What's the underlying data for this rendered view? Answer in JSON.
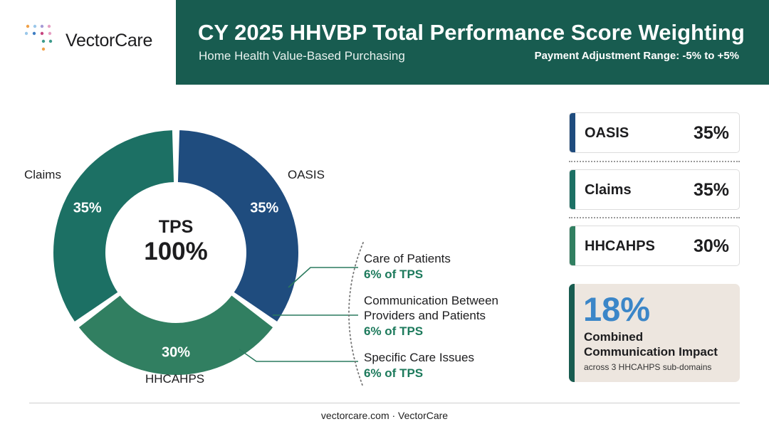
{
  "brand": {
    "name": "VectorCare"
  },
  "header": {
    "title": "CY 2025 HHVBP Total Performance Score Weighting",
    "subtitle": "Home Health Value-Based Purchasing",
    "range": "Payment Adjustment Range: -5% to +5%"
  },
  "chart_data": {
    "type": "pie",
    "donut": true,
    "center_label": "TPS",
    "center_value": "100%",
    "slices": [
      {
        "name": "OASIS",
        "value": 35,
        "label": "35%",
        "color": "#1f4c7e"
      },
      {
        "name": "HHCAHPS",
        "value": 30,
        "label": "30%",
        "color": "#317f61"
      },
      {
        "name": "Claims",
        "value": 35,
        "label": "35%",
        "color": "#1c7064"
      }
    ],
    "subdomains": [
      {
        "name": "Care of Patients",
        "share": "6% of TPS"
      },
      {
        "name": "Communication Between Providers and Patients",
        "share": "6% of TPS"
      },
      {
        "name": "Specific Care Issues",
        "share": "6% of TPS"
      }
    ]
  },
  "cards": [
    {
      "label": "OASIS",
      "value": "35%",
      "color": "#1f4c7e"
    },
    {
      "label": "Claims",
      "value": "35%",
      "color": "#1c7064"
    },
    {
      "label": "HHCAHPS",
      "value": "30%",
      "color": "#317f61"
    }
  ],
  "impact": {
    "value": "18%",
    "line1": "Combined",
    "line2": "Communication Impact",
    "line3": "across 3 HHCAHPS sub-domains"
  },
  "footer": "vectorcare.com · VectorCare",
  "colors": {
    "header_bg": "#185c50",
    "accent_green": "#1d7a5c",
    "impact_blue": "#3b86c8",
    "impact_bg": "#ede6df"
  }
}
